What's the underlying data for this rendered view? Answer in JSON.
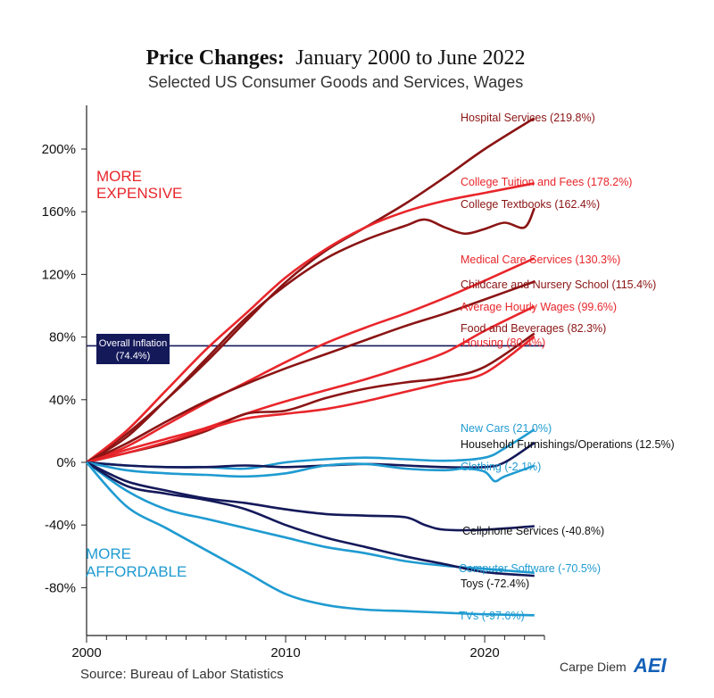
{
  "chart_data": {
    "type": "line",
    "title": "Price Changes:",
    "title_rest": "January 2000 to June 2022",
    "subtitle": "Selected US Consumer Goods and Services, Wages",
    "xlabel": "",
    "ylabel": "",
    "xlim": [
      2000,
      2023
    ],
    "ylim": [
      -110,
      230
    ],
    "x_ticks": [
      {
        "value": 2000,
        "label": "2000"
      },
      {
        "value": 2010,
        "label": "2010"
      },
      {
        "value": 2020,
        "label": "2020"
      }
    ],
    "y_ticks": [
      {
        "value": 200,
        "label": "200%"
      },
      {
        "value": 160,
        "label": "160%"
      },
      {
        "value": 120,
        "label": "120%"
      },
      {
        "value": 80,
        "label": "80%"
      },
      {
        "value": 40,
        "label": "40%"
      },
      {
        "value": 0,
        "label": "0%"
      },
      {
        "value": -40,
        "label": "-40%"
      },
      {
        "value": -80,
        "label": "-80%"
      }
    ],
    "reference_line": {
      "value": 74.4,
      "label_line1": "Overall Inflation",
      "label_line2": "(74.4%)",
      "color": "#14195a"
    },
    "annotations": {
      "more_expensive_1": "MORE",
      "more_expensive_2": "EXPENSIVE",
      "more_affordable_1": "MORE",
      "more_affordable_2": "AFFORDABLE"
    },
    "source": "Source: Bureau of Labor Statistics",
    "brand": "Carpe Diem",
    "brand_logo": "AEI",
    "series": [
      {
        "name": "Hospital Services (219.8%)",
        "color": "#8b1414",
        "x": [
          2000,
          2002,
          2004,
          2006,
          2008,
          2010,
          2012,
          2014,
          2016,
          2018,
          2020,
          2022.5
        ],
        "y": [
          0,
          18,
          40,
          64,
          90,
          115,
          135,
          150,
          165,
          182,
          200,
          219.8
        ]
      },
      {
        "name": "College Tuition and Fees (178.2%)",
        "color": "#e8262b",
        "x": [
          2000,
          2002,
          2004,
          2006,
          2008,
          2010,
          2012,
          2014,
          2016,
          2018,
          2020,
          2022.5
        ],
        "y": [
          0,
          20,
          46,
          72,
          95,
          118,
          136,
          150,
          160,
          167,
          172,
          178.2
        ]
      },
      {
        "name": "College Textbooks (162.4%)",
        "color": "#8b1414",
        "x": [
          2000,
          2002,
          2004,
          2006,
          2008,
          2010,
          2012,
          2014,
          2016,
          2017,
          2018,
          2019,
          2020,
          2021,
          2022,
          2022.5
        ],
        "y": [
          0,
          16,
          40,
          66,
          92,
          113,
          130,
          142,
          151,
          155,
          150,
          146,
          149,
          153,
          150,
          162.4
        ]
      },
      {
        "name": "Medical Care Services (130.3%)",
        "color": "#e8262b",
        "x": [
          2000,
          2002,
          2004,
          2006,
          2008,
          2010,
          2012,
          2014,
          2016,
          2018,
          2020,
          2022.5
        ],
        "y": [
          0,
          10,
          24,
          38,
          51,
          64,
          76,
          86,
          95,
          105,
          116,
          130.3
        ]
      },
      {
        "name": "Childcare and Nursery School (115.4%)",
        "color": "#8b1414",
        "x": [
          2000,
          2002,
          2004,
          2006,
          2008,
          2010,
          2012,
          2014,
          2016,
          2018,
          2020,
          2022.5
        ],
        "y": [
          0,
          12,
          26,
          39,
          50,
          60,
          69,
          78,
          87,
          95,
          104,
          115.4
        ]
      },
      {
        "name": "Average Hourly Wages (99.6%)",
        "color": "#e8262b",
        "x": [
          2000,
          2002,
          2004,
          2006,
          2008,
          2010,
          2012,
          2014,
          2016,
          2018,
          2020,
          2022.5
        ],
        "y": [
          0,
          8,
          15,
          22,
          31,
          39,
          46,
          53,
          61,
          70,
          84,
          99.6
        ]
      },
      {
        "name": "Food and Beverages (82.3%)",
        "color": "#8b1414",
        "x": [
          2000,
          2002,
          2004,
          2006,
          2008,
          2010,
          2012,
          2014,
          2016,
          2018,
          2020,
          2022.5
        ],
        "y": [
          0,
          6,
          12,
          20,
          31,
          33,
          41,
          47,
          51,
          54,
          61,
          82.3
        ]
      },
      {
        "name": "Housing (80.4%)",
        "color": "#e8262b",
        "x": [
          2000,
          2002,
          2004,
          2006,
          2008,
          2010,
          2012,
          2014,
          2016,
          2018,
          2020,
          2022.5
        ],
        "y": [
          0,
          6,
          13,
          21,
          28,
          31,
          34,
          39,
          45,
          51,
          57,
          80.4
        ]
      },
      {
        "name": "New Cars (21.0%)",
        "color": "#1f9bd1",
        "x": [
          2000,
          2002,
          2004,
          2006,
          2008,
          2010,
          2012,
          2014,
          2016,
          2018,
          2020,
          2021,
          2022.5
        ],
        "y": [
          0,
          -2,
          -3,
          -3,
          -4,
          0,
          2,
          3,
          2,
          1,
          3,
          9,
          21.0
        ]
      },
      {
        "name": "Household Furnishings/Operations (12.5%)",
        "color": "#14195a",
        "x": [
          2000,
          2002,
          2004,
          2006,
          2008,
          2010,
          2012,
          2014,
          2016,
          2018,
          2020,
          2021,
          2022.5
        ],
        "y": [
          0,
          -2,
          -3,
          -3,
          -2,
          -3,
          -2,
          -1,
          -2,
          -3,
          -3,
          0,
          12.5
        ]
      },
      {
        "name": "Clothing (-2.1%)",
        "color": "#1f9bd1",
        "x": [
          2000,
          2002,
          2004,
          2006,
          2008,
          2010,
          2012,
          2014,
          2016,
          2018,
          2019,
          2020,
          2020.5,
          2021,
          2022.5
        ],
        "y": [
          0,
          -5,
          -7,
          -8,
          -9,
          -7,
          -2,
          -1,
          -4,
          -5,
          -4,
          -6,
          -12,
          -9,
          -2.1
        ]
      },
      {
        "name": "Cellphone Services (-40.8%)",
        "color": "#14195a",
        "x": [
          2000,
          2002,
          2004,
          2006,
          2008,
          2010,
          2012,
          2014,
          2016,
          2017,
          2018,
          2020,
          2022.5
        ],
        "y": [
          0,
          -12,
          -18,
          -23,
          -26,
          -30,
          -33,
          -34,
          -35,
          -40,
          -43,
          -43,
          -40.8
        ]
      },
      {
        "name": "Computer Software (-70.5%)",
        "color": "#1f9bd1",
        "x": [
          2000,
          2002,
          2004,
          2006,
          2008,
          2010,
          2012,
          2014,
          2016,
          2018,
          2020,
          2022.5
        ],
        "y": [
          0,
          -18,
          -30,
          -36,
          -42,
          -48,
          -54,
          -58,
          -63,
          -66,
          -68,
          -70.5
        ]
      },
      {
        "name": "Toys (-72.4%)",
        "color": "#14195a",
        "x": [
          2000,
          2002,
          2004,
          2006,
          2008,
          2010,
          2012,
          2014,
          2016,
          2018,
          2020,
          2022.5
        ],
        "y": [
          0,
          -15,
          -20,
          -24,
          -30,
          -40,
          -48,
          -54,
          -60,
          -65,
          -70,
          -72.4
        ]
      },
      {
        "name": "TVs (-97.6%)",
        "color": "#1f9bd1",
        "x": [
          2000,
          2002,
          2004,
          2006,
          2008,
          2010,
          2012,
          2014,
          2016,
          2018,
          2020,
          2022.5
        ],
        "y": [
          0,
          -28,
          -42,
          -56,
          -70,
          -84,
          -91,
          -94,
          -95,
          -96,
          -97,
          -97.6
        ]
      }
    ]
  }
}
